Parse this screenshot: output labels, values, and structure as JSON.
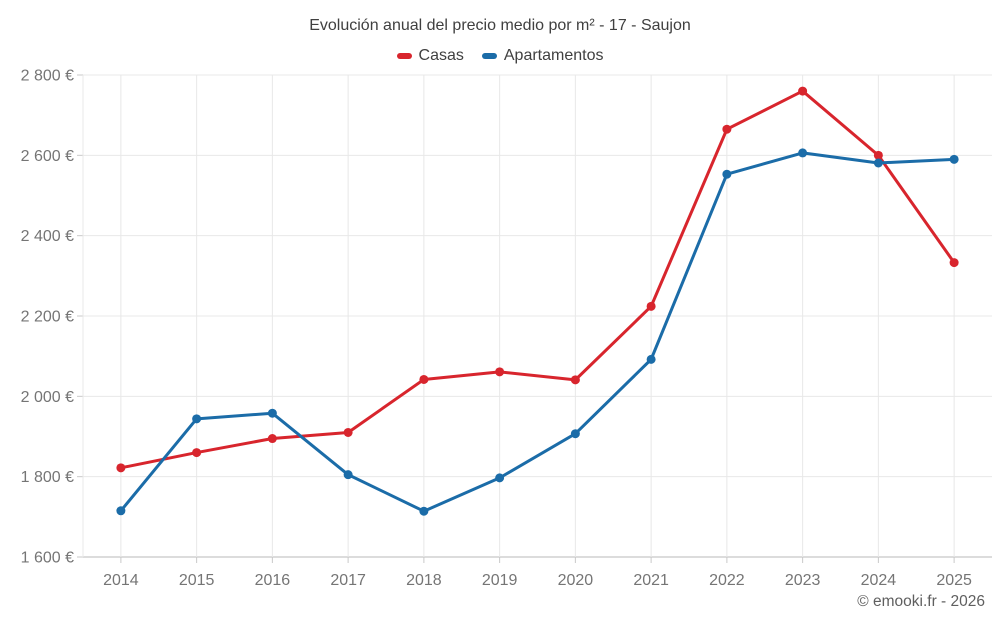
{
  "title": "Evolución anual del precio medio por m² - 17 - Saujon",
  "footer": "© emooki.fr - 2026",
  "chart_data": {
    "type": "line",
    "title": "Evolución anual del precio medio por m² - 17 - Saujon",
    "categories": [
      "2014",
      "2015",
      "2016",
      "2017",
      "2018",
      "2019",
      "2020",
      "2021",
      "2022",
      "2023",
      "2024",
      "2025"
    ],
    "series": [
      {
        "name": "Casas",
        "color": "#d8252d",
        "values": [
          1822,
          1860,
          1895,
          1910,
          2042,
          2061,
          2041,
          2224,
          2665,
          2760,
          2600,
          2333
        ]
      },
      {
        "name": "Apartamentos",
        "color": "#1b6ca8",
        "values": [
          1715,
          1944,
          1958,
          1805,
          1714,
          1797,
          1907,
          2092,
          2553,
          2606,
          2581,
          2590
        ]
      }
    ],
    "xlabel": "",
    "ylabel": "",
    "ylim": [
      1600,
      2800
    ],
    "ytick_step": 200,
    "ytick_labels": [
      "1 600 €",
      "1 800 €",
      "2 000 €",
      "2 200 €",
      "2 400 €",
      "2 600 €",
      "2 800 €"
    ],
    "grid": true,
    "legend_position": "top",
    "marker": "circle"
  }
}
